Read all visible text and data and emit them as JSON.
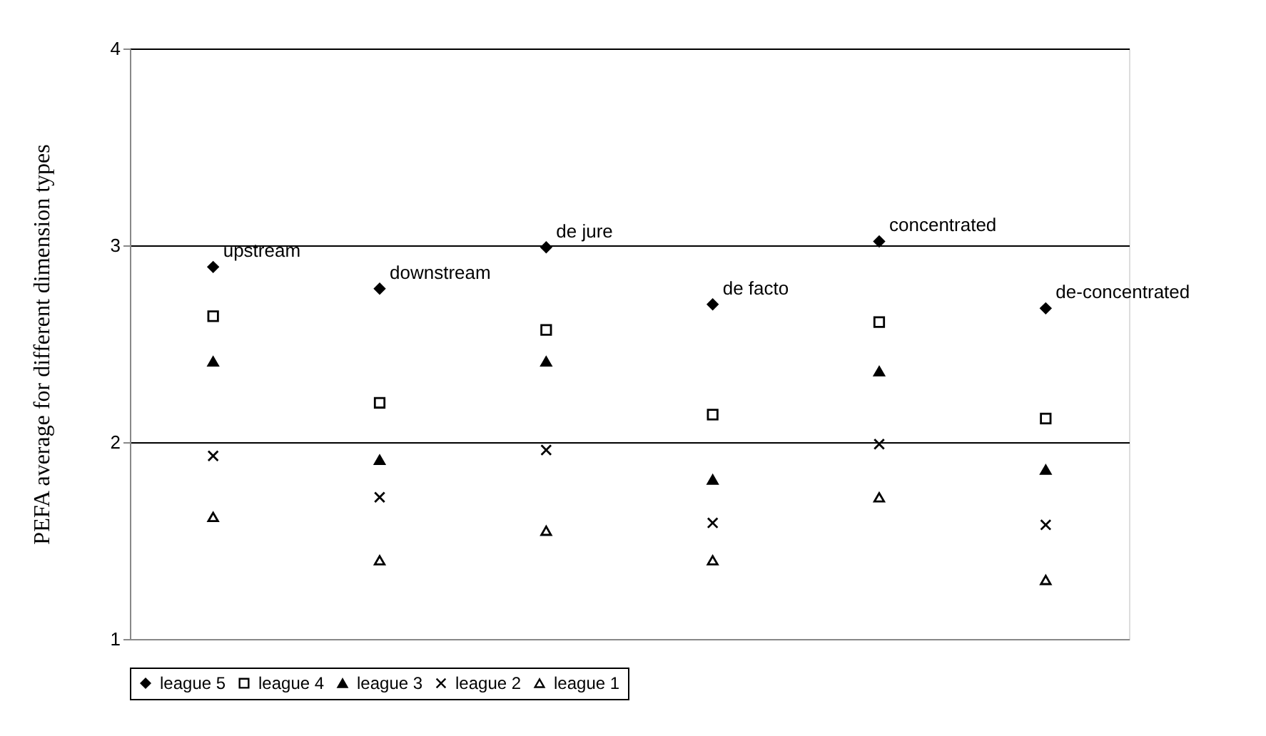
{
  "chart_data": {
    "type": "scatter",
    "ylabel": "PEFA average for different dimension types",
    "categories": [
      null,
      null,
      null,
      null,
      null,
      null
    ],
    "series": [
      {
        "name": "league 5",
        "color": "#000000",
        "marker": "diamond",
        "values": [
          2.89,
          2.78,
          2.99,
          2.7,
          3.02,
          2.68
        ]
      },
      {
        "name": "league 4",
        "color": "#000000",
        "marker": "square",
        "values": [
          2.64,
          2.2,
          2.57,
          2.14,
          2.61,
          2.12
        ]
      },
      {
        "name": "league 3",
        "color": "#000000",
        "marker": "triangle",
        "values": [
          2.41,
          1.91,
          2.41,
          1.81,
          2.36,
          1.86
        ]
      },
      {
        "name": "league 2",
        "color": "#000000",
        "marker": "cross",
        "values": [
          1.93,
          1.72,
          1.96,
          1.59,
          1.99,
          1.58
        ]
      },
      {
        "name": "league 1",
        "color": "#000000",
        "marker": "triangle",
        "values": [
          1.62,
          1.4,
          1.55,
          1.4,
          1.72,
          1.3
        ]
      }
    ],
    "annotations": [
      "upstream",
      "downstream",
      "de jure",
      "de facto",
      "concentrated",
      "de-concentrated"
    ],
    "ylim": [
      1,
      4
    ],
    "yticks": [
      1,
      2,
      3,
      4
    ],
    "grid": "y",
    "legend": "bottom"
  }
}
